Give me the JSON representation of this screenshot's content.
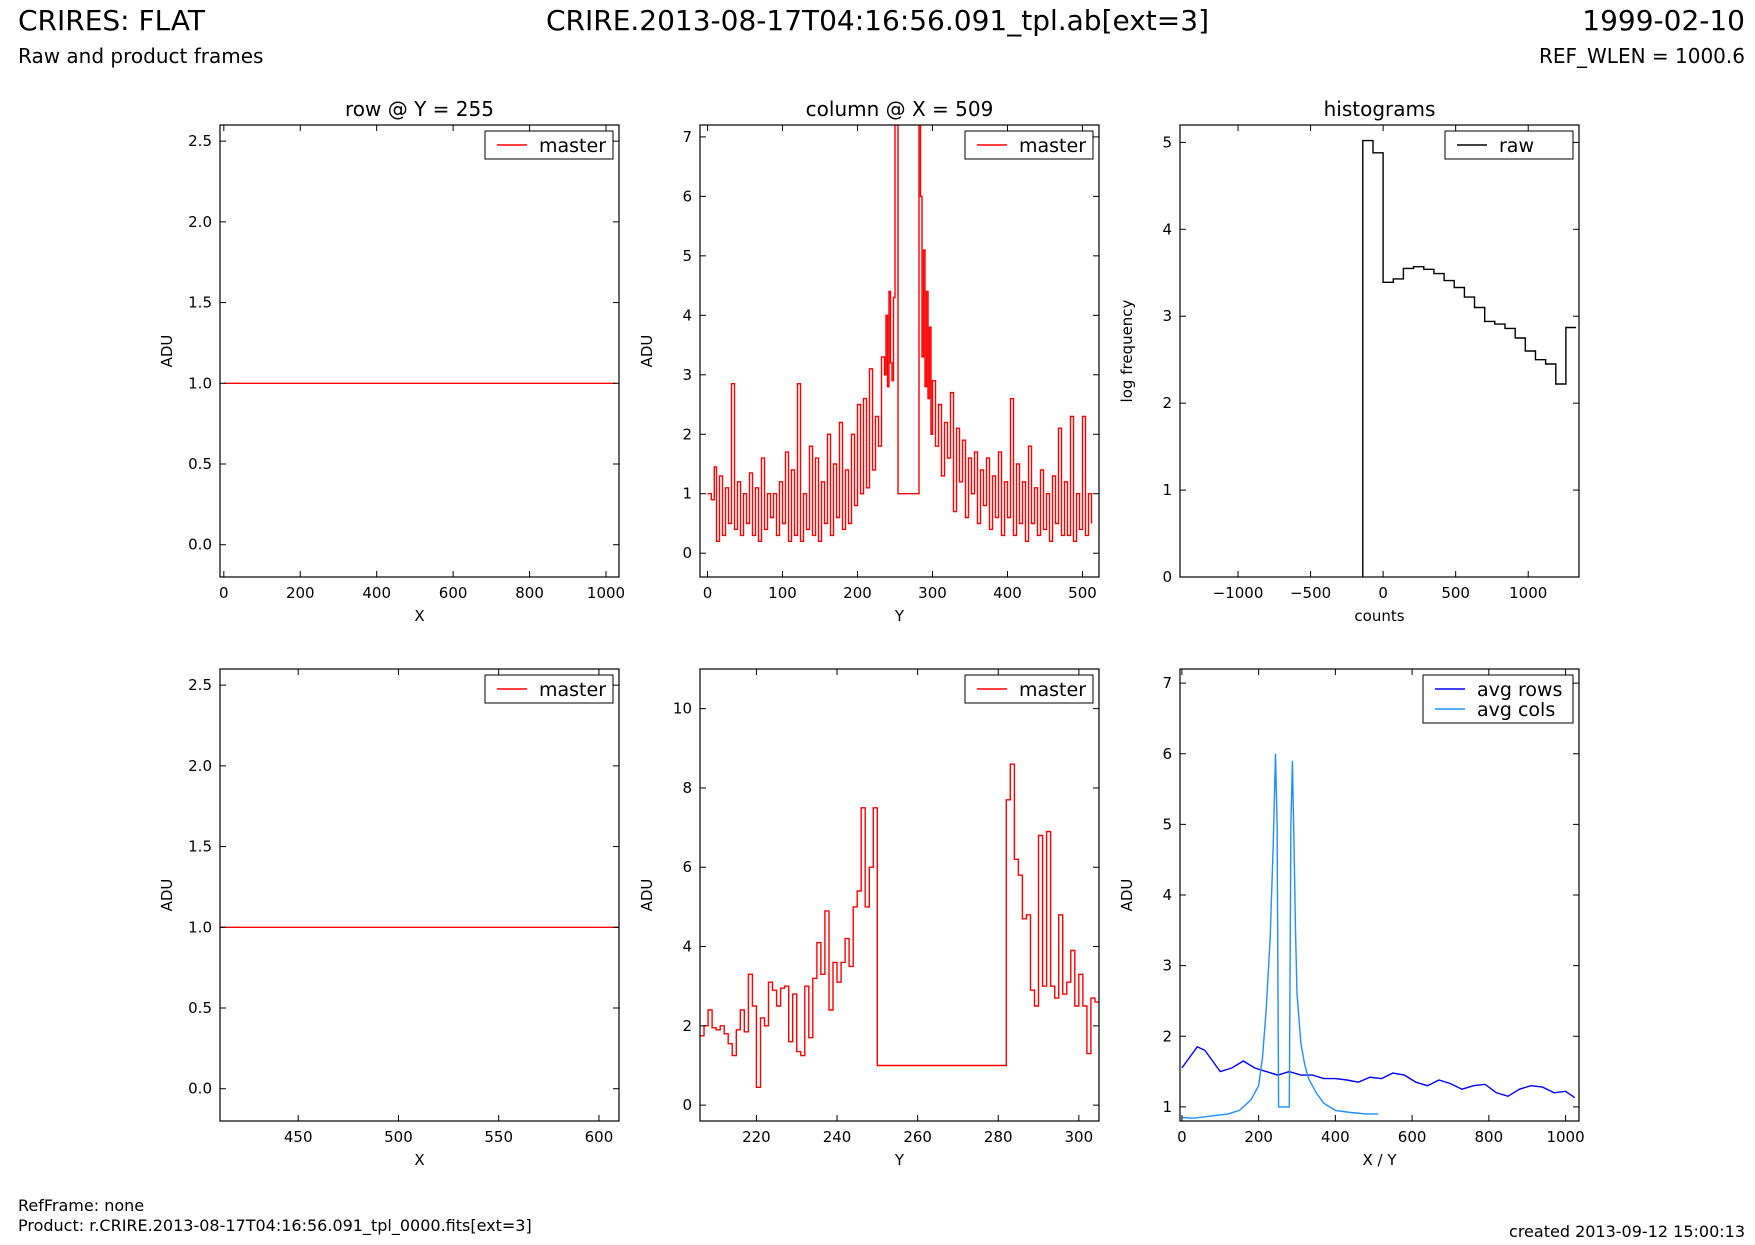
{
  "header": {
    "title": "CRIRES: FLAT",
    "subtitle": "Raw and product frames",
    "file": "CRIRE.2013-08-17T04:16:56.091_tpl.ab[ext=3]",
    "date": "1999-02-10",
    "ref_wlen": "REF_WLEN = 1000.6"
  },
  "footer": {
    "ref_frame": "RefFrame: none",
    "product": "Product: r.CRIRE.2013-08-17T04:16:56.091_tpl_0000.fits[ext=3]",
    "created": "created 2013-09-12 15:00:13"
  },
  "chart_data": [
    {
      "id": "row_full",
      "type": "line",
      "title": "row @ Y = 255",
      "xlabel": "X",
      "ylabel": "ADU",
      "xlim": [
        -10,
        1034
      ],
      "ylim": [
        -0.2,
        2.6
      ],
      "xticks": [
        0,
        200,
        400,
        600,
        800,
        1000
      ],
      "yticks": [
        "0.0",
        "0.5",
        "1.0",
        "1.5",
        "2.0",
        "2.5"
      ],
      "legend": "top-right",
      "series": [
        {
          "name": "master",
          "color": "#ff0000",
          "x": [
            0,
            1024
          ],
          "y": [
            1.0,
            1.0
          ]
        }
      ]
    },
    {
      "id": "col_full",
      "type": "line",
      "title": "column @ X = 509",
      "xlabel": "Y",
      "ylabel": "ADU",
      "xlim": [
        -10,
        522
      ],
      "ylim": [
        -0.4,
        7.2
      ],
      "xticks": [
        0,
        100,
        200,
        300,
        400,
        500
      ],
      "yticks": [
        "0",
        "1",
        "2",
        "3",
        "4",
        "5",
        "6",
        "7"
      ],
      "legend": "top-right",
      "series": [
        {
          "name": "master",
          "color": "#ff0000",
          "x": [
            0,
            5,
            9,
            12,
            16,
            20,
            24,
            28,
            32,
            36,
            40,
            44,
            48,
            52,
            56,
            60,
            64,
            68,
            72,
            76,
            80,
            84,
            88,
            92,
            96,
            100,
            104,
            108,
            112,
            116,
            120,
            124,
            128,
            132,
            136,
            140,
            144,
            148,
            152,
            156,
            160,
            164,
            168,
            172,
            176,
            180,
            184,
            188,
            192,
            196,
            200,
            204,
            208,
            212,
            216,
            220,
            224,
            228,
            232,
            236,
            238,
            240,
            242,
            244,
            246,
            248,
            250,
            252,
            254,
            256,
            260,
            264,
            268,
            272,
            276,
            280,
            282,
            284,
            286,
            288,
            290,
            292,
            294,
            296,
            298,
            300,
            304,
            308,
            312,
            316,
            320,
            324,
            328,
            332,
            336,
            340,
            344,
            348,
            352,
            356,
            360,
            364,
            368,
            372,
            376,
            380,
            384,
            388,
            392,
            396,
            400,
            404,
            408,
            412,
            416,
            420,
            424,
            428,
            432,
            436,
            440,
            444,
            448,
            452,
            456,
            460,
            464,
            468,
            472,
            476,
            480,
            484,
            488,
            492,
            496,
            500,
            504,
            508,
            512
          ],
          "y": [
            1.0,
            0.9,
            1.45,
            0.2,
            1.3,
            0.3,
            1.1,
            0.5,
            2.85,
            0.4,
            1.2,
            0.3,
            1.0,
            0.5,
            1.35,
            0.3,
            1.1,
            0.2,
            1.6,
            0.4,
            1.0,
            0.6,
            1.0,
            0.3,
            1.2,
            0.5,
            1.7,
            0.2,
            1.4,
            0.3,
            2.85,
            0.2,
            1.0,
            0.4,
            1.8,
            0.3,
            1.6,
            0.2,
            1.2,
            0.5,
            2.0,
            0.3,
            1.5,
            0.6,
            2.2,
            0.4,
            1.4,
            0.5,
            2.0,
            0.8,
            2.5,
            1.0,
            2.6,
            1.1,
            3.1,
            1.4,
            2.3,
            1.8,
            3.3,
            3.0,
            4.0,
            2.8,
            4.4,
            3.2,
            2.9,
            4.3,
            7.2,
            7.2,
            1.0,
            1.0,
            1.0,
            1.0,
            1.0,
            1.0,
            1.0,
            1.0,
            7.2,
            6.0,
            3.3,
            5.1,
            2.8,
            4.4,
            2.6,
            3.8,
            2.0,
            2.9,
            1.8,
            2.5,
            1.3,
            2.2,
            1.6,
            2.7,
            0.7,
            2.1,
            1.2,
            1.9,
            0.6,
            1.6,
            1.0,
            1.7,
            0.5,
            1.4,
            0.8,
            1.6,
            0.4,
            1.3,
            0.6,
            1.7,
            0.3,
            1.2,
            0.6,
            2.6,
            0.3,
            1.5,
            0.5,
            1.2,
            0.2,
            1.8,
            0.5,
            1.1,
            0.3,
            1.4,
            0.4,
            1.0,
            0.2,
            1.3,
            0.5,
            2.1,
            0.3,
            1.2,
            0.3,
            2.3,
            0.2,
            1.0,
            0.4,
            2.3,
            0.3,
            1.0,
            0.5
          ]
        }
      ]
    },
    {
      "id": "histograms",
      "type": "line",
      "title": "histograms",
      "xlabel": "counts",
      "ylabel": "log frequency",
      "xlim": [
        -1400,
        1350
      ],
      "ylim": [
        0,
        5.2
      ],
      "xticks": [
        -1000,
        -500,
        0,
        500,
        1000
      ],
      "xtick_labels": [
        "−1000",
        "−500",
        "0",
        "500",
        "1000"
      ],
      "yticks": [
        "0",
        "1",
        "2",
        "3",
        "4",
        "5"
      ],
      "legend": "top-right",
      "series": [
        {
          "name": "raw",
          "color": "#000000",
          "x": [
            -140,
            -70,
            0,
            70,
            140,
            210,
            280,
            350,
            420,
            490,
            560,
            630,
            700,
            770,
            840,
            910,
            980,
            1050,
            1120,
            1190,
            1260,
            1330
          ],
          "y": [
            5.02,
            4.88,
            3.39,
            3.43,
            3.55,
            3.57,
            3.54,
            3.49,
            3.41,
            3.33,
            3.22,
            3.1,
            2.94,
            2.91,
            2.86,
            2.75,
            2.6,
            2.5,
            2.45,
            2.22,
            2.87,
            2.87
          ]
        }
      ]
    },
    {
      "id": "row_zoom",
      "type": "line",
      "title": "",
      "xlabel": "X",
      "ylabel": "ADU",
      "xlim": [
        411,
        610
      ],
      "ylim": [
        -0.2,
        2.6
      ],
      "xticks": [
        450,
        500,
        550,
        600
      ],
      "yticks": [
        "0.0",
        "0.5",
        "1.0",
        "1.5",
        "2.0",
        "2.5"
      ],
      "legend": "top-right",
      "series": [
        {
          "name": "master",
          "color": "#ff0000",
          "x": [
            411,
            610
          ],
          "y": [
            1.0,
            1.0
          ]
        }
      ]
    },
    {
      "id": "col_zoom",
      "type": "line",
      "title": "",
      "xlabel": "Y",
      "ylabel": "ADU",
      "xlim": [
        206,
        305
      ],
      "ylim": [
        -0.4,
        11
      ],
      "xticks": [
        220,
        240,
        260,
        280,
        300
      ],
      "yticks": [
        "0",
        "2",
        "4",
        "6",
        "8",
        "10"
      ],
      "legend": "top-right",
      "series": [
        {
          "name": "master",
          "color": "#ff0000",
          "x": [
            206,
            207,
            208,
            209,
            210,
            211,
            212,
            213,
            214,
            215,
            216,
            217,
            218,
            219,
            220,
            221,
            222,
            223,
            224,
            225,
            226,
            227,
            228,
            229,
            230,
            231,
            232,
            233,
            234,
            235,
            236,
            237,
            238,
            239,
            240,
            241,
            242,
            243,
            244,
            245,
            246,
            247,
            248,
            249,
            250,
            282,
            283,
            284,
            285,
            286,
            287,
            288,
            289,
            290,
            291,
            292,
            293,
            294,
            295,
            296,
            297,
            298,
            299,
            300,
            301,
            302,
            303,
            304,
            305
          ],
          "y": [
            1.75,
            2.0,
            2.4,
            1.95,
            1.9,
            2.0,
            1.8,
            1.55,
            1.25,
            1.9,
            2.4,
            1.85,
            3.3,
            2.5,
            0.45,
            2.2,
            2.0,
            3.1,
            2.9,
            2.5,
            2.95,
            3.0,
            1.6,
            2.8,
            1.35,
            1.25,
            3.0,
            1.7,
            3.2,
            4.1,
            3.3,
            4.9,
            2.4,
            3.6,
            3.1,
            3.6,
            4.2,
            3.5,
            5.0,
            5.4,
            7.5,
            5.0,
            6.0,
            7.5,
            1.0,
            7.7,
            8.6,
            6.2,
            5.8,
            4.7,
            4.8,
            2.9,
            2.5,
            6.8,
            3.0,
            6.9,
            3.0,
            2.7,
            4.8,
            2.8,
            3.1,
            3.9,
            2.5,
            3.3,
            2.5,
            1.3,
            2.7,
            2.6,
            2.6
          ]
        }
      ]
    },
    {
      "id": "averages",
      "type": "line",
      "title": "",
      "xlabel": "X / Y",
      "ylabel": "ADU",
      "xlim": [
        -5,
        1035
      ],
      "ylim": [
        0.8,
        7.2
      ],
      "xticks": [
        0,
        200,
        400,
        600,
        800,
        1000
      ],
      "yticks": [
        "1",
        "2",
        "3",
        "4",
        "5",
        "6",
        "7"
      ],
      "legend": "top-right",
      "series": [
        {
          "name": "avg rows",
          "color": "#0000ff",
          "x": [
            0,
            20,
            40,
            60,
            80,
            100,
            130,
            160,
            190,
            220,
            250,
            280,
            310,
            340,
            370,
            400,
            430,
            460,
            490,
            520,
            550,
            580,
            610,
            640,
            670,
            700,
            730,
            760,
            790,
            820,
            850,
            880,
            910,
            940,
            970,
            1000,
            1024
          ],
          "y": [
            1.55,
            1.7,
            1.85,
            1.8,
            1.65,
            1.5,
            1.55,
            1.65,
            1.55,
            1.5,
            1.45,
            1.5,
            1.45,
            1.45,
            1.4,
            1.4,
            1.38,
            1.35,
            1.42,
            1.4,
            1.48,
            1.45,
            1.35,
            1.3,
            1.38,
            1.33,
            1.25,
            1.3,
            1.32,
            1.2,
            1.15,
            1.25,
            1.3,
            1.28,
            1.2,
            1.22,
            1.13
          ]
        },
        {
          "name": "avg cols",
          "color": "#1e90ff",
          "x": [
            0,
            30,
            60,
            90,
            120,
            150,
            180,
            200,
            210,
            220,
            230,
            238,
            244,
            248,
            252,
            256,
            260,
            270,
            280,
            284,
            288,
            292,
            296,
            300,
            310,
            320,
            330,
            340,
            350,
            370,
            400,
            440,
            480,
            512
          ],
          "y": [
            0.85,
            0.84,
            0.86,
            0.88,
            0.9,
            0.95,
            1.1,
            1.3,
            1.7,
            2.4,
            3.4,
            4.7,
            6.0,
            5.0,
            1.0,
            1.0,
            1.0,
            1.0,
            1.0,
            5.0,
            5.9,
            4.8,
            3.5,
            2.6,
            1.9,
            1.6,
            1.4,
            1.3,
            1.2,
            1.05,
            0.95,
            0.92,
            0.9,
            0.9
          ]
        }
      ]
    }
  ]
}
